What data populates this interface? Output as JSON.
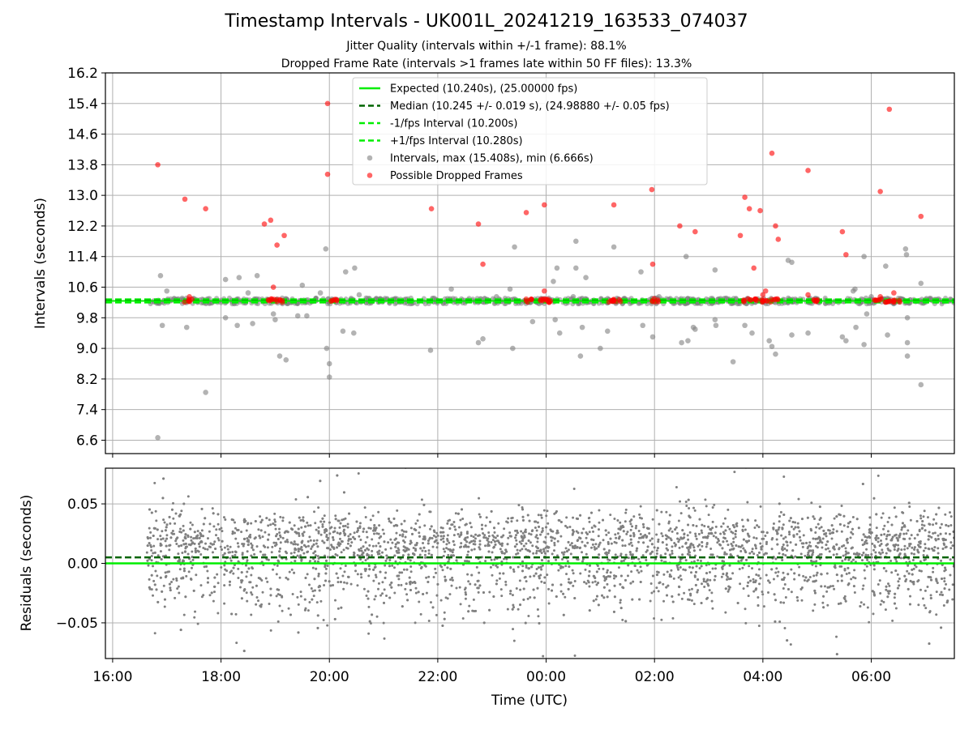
{
  "chart_data": [
    {
      "type": "scatter",
      "title": "Timestamp Intervals - UK001L_20241219_163533_074037",
      "subtitle_1": "Jitter Quality (intervals within +/-1 frame): 88.1%",
      "subtitle_2": "Dropped Frame Rate (intervals >1 frames late within 50 FF files): 13.3%",
      "ylabel": "Intervals (seconds)",
      "xlim": [
        "15:52",
        "07:32"
      ],
      "ylim": [
        6.25,
        16.2
      ],
      "yticks": [
        "6.6",
        "7.4",
        "8.2",
        "9.0",
        "9.8",
        "10.6",
        "11.4",
        "12.2",
        "13.0",
        "13.8",
        "14.6",
        "15.4",
        "16.2"
      ],
      "grid": true,
      "legend_position": "top-center",
      "legend": [
        "Expected (10.240s), (25.00000 fps)",
        "Median (10.245 +/- 0.019 s), (24.98880 +/- 0.05 fps)",
        "-1/fps Interval (10.200s)",
        "+1/fps Interval (10.280s)",
        "Intervals, max (15.408s), min (6.666s)",
        "Possible Dropped Frames"
      ],
      "lines": {
        "expected": 10.24,
        "median": 10.245,
        "minus_fps": 10.2,
        "plus_fps": 10.28
      },
      "colors": {
        "expected": "#00ee00",
        "median": "#006400",
        "interval_band": "#00ee00",
        "intervals": "#808080",
        "dropped": "#ff0000"
      },
      "intervals_band": {
        "x_start": "16:38",
        "x_end": "07:32",
        "y_min": 10.16,
        "y_max": 10.32
      },
      "dropped_clusters": [
        "17:24",
        "18:55",
        "19:05",
        "20:05",
        "23:40",
        "23:58",
        "00:03",
        "01:13",
        "01:18",
        "02:00",
        "03:43",
        "03:55",
        "04:03",
        "04:13",
        "04:57",
        "06:08",
        "06:18",
        "06:28"
      ],
      "intervals_outliers": [
        [
          "16:50",
          6.666
        ],
        [
          "16:53",
          10.9
        ],
        [
          "16:55",
          9.6
        ],
        [
          "17:00",
          10.5
        ],
        [
          "17:22",
          9.55
        ],
        [
          "17:43",
          7.85
        ],
        [
          "18:05",
          10.8
        ],
        [
          "18:05",
          9.8
        ],
        [
          "18:18",
          9.6
        ],
        [
          "18:20",
          10.85
        ],
        [
          "18:30",
          10.45
        ],
        [
          "18:35",
          9.65
        ],
        [
          "18:40",
          10.9
        ],
        [
          "18:58",
          9.9
        ],
        [
          "19:00",
          9.75
        ],
        [
          "19:05",
          8.8
        ],
        [
          "19:12",
          8.7
        ],
        [
          "19:25",
          9.85
        ],
        [
          "19:30",
          10.65
        ],
        [
          "19:35",
          9.85
        ],
        [
          "19:50",
          10.45
        ],
        [
          "19:56",
          11.6
        ],
        [
          "19:57",
          9.0
        ],
        [
          "20:00",
          8.6
        ],
        [
          "20:00",
          8.25
        ],
        [
          "20:15",
          9.45
        ],
        [
          "20:18",
          11.0
        ],
        [
          "20:27",
          9.4
        ],
        [
          "20:28",
          11.1
        ],
        [
          "20:33",
          10.4
        ],
        [
          "21:52",
          8.95
        ],
        [
          "21:55",
          10.3
        ],
        [
          "22:15",
          10.55
        ],
        [
          "22:45",
          9.15
        ],
        [
          "22:50",
          9.25
        ],
        [
          "23:05",
          10.35
        ],
        [
          "23:20",
          10.55
        ],
        [
          "23:23",
          9.0
        ],
        [
          "23:25",
          11.65
        ],
        [
          "23:45",
          9.7
        ],
        [
          "23:58",
          10.3
        ],
        [
          "24:08",
          10.75
        ],
        [
          "24:10",
          9.75
        ],
        [
          "24:12",
          11.1
        ],
        [
          "24:15",
          9.4
        ],
        [
          "24:30",
          10.35
        ],
        [
          "24:33",
          11.1
        ],
        [
          "24:33",
          11.8
        ],
        [
          "24:38",
          8.8
        ],
        [
          "24:40",
          9.55
        ],
        [
          "24:44",
          10.85
        ],
        [
          "25:00",
          9.0
        ],
        [
          "25:08",
          9.45
        ],
        [
          "25:08",
          10.3
        ],
        [
          "25:15",
          11.65
        ],
        [
          "25:45",
          11.0
        ],
        [
          "25:47",
          9.6
        ],
        [
          "25:58",
          9.3
        ],
        [
          "26:05",
          10.35
        ],
        [
          "26:30",
          9.15
        ],
        [
          "26:35",
          11.4
        ],
        [
          "26:37",
          9.2
        ],
        [
          "26:43",
          9.55
        ],
        [
          "26:45",
          9.5
        ],
        [
          "27:07",
          11.05
        ],
        [
          "27:07",
          9.75
        ],
        [
          "27:08",
          9.6
        ],
        [
          "27:17",
          10.3
        ],
        [
          "27:27",
          8.65
        ],
        [
          "27:40",
          9.6
        ],
        [
          "27:48",
          9.4
        ],
        [
          "28:07",
          9.2
        ],
        [
          "28:10",
          9.05
        ],
        [
          "28:14",
          8.85
        ],
        [
          "28:28",
          11.3
        ],
        [
          "28:32",
          11.25
        ],
        [
          "28:32",
          9.35
        ],
        [
          "28:50",
          9.4
        ],
        [
          "29:28",
          9.3
        ],
        [
          "29:32",
          9.2
        ],
        [
          "29:40",
          10.5
        ],
        [
          "29:42",
          10.55
        ],
        [
          "29:43",
          9.55
        ],
        [
          "29:52",
          9.1
        ],
        [
          "29:52",
          11.4
        ],
        [
          "29:55",
          9.9
        ],
        [
          "30:00",
          10.35
        ],
        [
          "30:16",
          11.15
        ],
        [
          "30:18",
          9.35
        ],
        [
          "30:38",
          11.6
        ],
        [
          "30:39",
          11.45
        ],
        [
          "30:40",
          9.8
        ],
        [
          "30:40",
          9.15
        ],
        [
          "30:40",
          8.8
        ],
        [
          "30:55",
          10.7
        ],
        [
          "30:55",
          8.05
        ]
      ],
      "dropped_outliers": [
        [
          "16:50",
          13.8
        ],
        [
          "17:20",
          12.9
        ],
        [
          "17:25",
          10.35
        ],
        [
          "17:43",
          12.65
        ],
        [
          "18:48",
          12.25
        ],
        [
          "18:55",
          12.35
        ],
        [
          "18:58",
          10.6
        ],
        [
          "19:02",
          11.7
        ],
        [
          "19:10",
          11.95
        ],
        [
          "19:58",
          15.4
        ],
        [
          "19:58",
          13.55
        ],
        [
          "21:53",
          12.65
        ],
        [
          "22:45",
          12.25
        ],
        [
          "22:50",
          11.2
        ],
        [
          "23:38",
          12.55
        ],
        [
          "23:58",
          12.75
        ],
        [
          "23:58",
          10.5
        ],
        [
          "25:15",
          12.75
        ],
        [
          "25:57",
          13.15
        ],
        [
          "25:58",
          11.2
        ],
        [
          "26:28",
          12.2
        ],
        [
          "26:45",
          12.05
        ],
        [
          "27:35",
          11.95
        ],
        [
          "27:40",
          12.95
        ],
        [
          "27:45",
          12.65
        ],
        [
          "27:50",
          11.1
        ],
        [
          "27:57",
          12.6
        ],
        [
          "28:00",
          10.4
        ],
        [
          "28:03",
          10.5
        ],
        [
          "28:10",
          14.1
        ],
        [
          "28:14",
          12.2
        ],
        [
          "28:17",
          11.85
        ],
        [
          "28:50",
          13.65
        ],
        [
          "28:50",
          10.4
        ],
        [
          "29:28",
          12.05
        ],
        [
          "29:32",
          11.45
        ],
        [
          "30:10",
          13.1
        ],
        [
          "30:10",
          10.35
        ],
        [
          "30:20",
          15.25
        ],
        [
          "30:25",
          10.45
        ],
        [
          "30:55",
          12.45
        ]
      ]
    },
    {
      "type": "scatter",
      "xlabel": "Time (UTC)",
      "ylabel": "Residuals (seconds)",
      "xlim": [
        "15:52",
        "07:32"
      ],
      "ylim": [
        -0.08,
        0.08
      ],
      "xticks": [
        "16:00",
        "18:00",
        "20:00",
        "22:00",
        "00:00",
        "02:00",
        "04:00",
        "06:00"
      ],
      "yticks": [
        "0.05",
        "0.00",
        "−0.05"
      ],
      "grid": true,
      "lines": {
        "expected": 0.0,
        "median": 0.005
      },
      "colors": {
        "expected": "#00ee00",
        "median": "#006400",
        "residuals": "#808080"
      },
      "residuals_x_start": "16:38",
      "residuals_x_end": "07:32",
      "residuals_cluster_centers": [
        0.02,
        -0.01
      ],
      "residuals_spread": 0.025
    }
  ]
}
